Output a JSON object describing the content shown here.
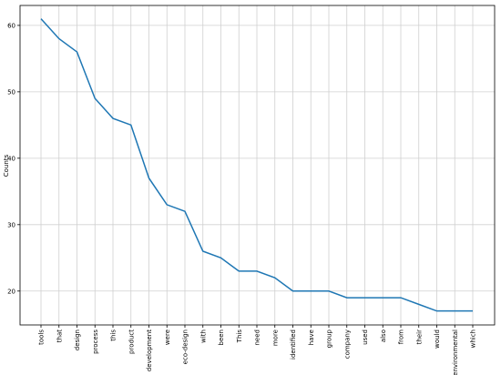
{
  "chart_data": {
    "type": "line",
    "y_label": "Counts",
    "categories": [
      "tools",
      "that",
      "design",
      "process",
      "this",
      "product",
      "development",
      "were",
      "eco-design",
      "with",
      "been",
      "This",
      "need",
      "more",
      "identified",
      "have",
      "group",
      "company",
      "used",
      "also",
      "from",
      "their",
      "would",
      "environmental",
      "which"
    ],
    "values": [
      61,
      58,
      56,
      49,
      46,
      45,
      37,
      33,
      32,
      26,
      25,
      23,
      23,
      22,
      20,
      20,
      20,
      19,
      19,
      19,
      19,
      18,
      17,
      17,
      17
    ],
    "color": "#1f77b4",
    "ylim": [
      14.9,
      63.0
    ],
    "yticks": [
      20,
      30,
      40,
      50,
      60
    ],
    "grid": true
  }
}
